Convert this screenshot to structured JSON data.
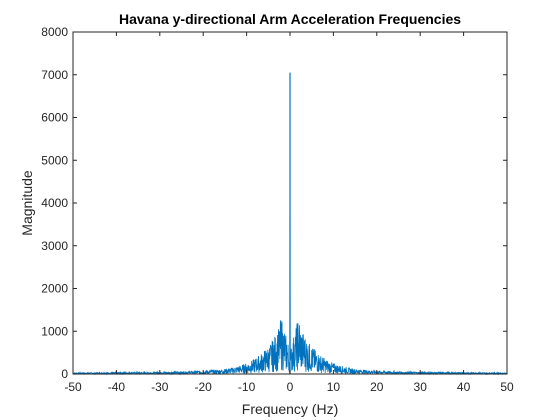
{
  "chart_data": {
    "type": "line",
    "title": "Havana y-directional Arm Acceleration Frequencies",
    "xlabel": "Frequency (Hz)",
    "ylabel": "Magnitude",
    "xlim": [
      -50,
      50
    ],
    "ylim": [
      0,
      8000
    ],
    "xticks": [
      -50,
      -40,
      -30,
      -20,
      -10,
      0,
      10,
      20,
      30,
      40,
      50
    ],
    "yticks": [
      0,
      1000,
      2000,
      3000,
      4000,
      5000,
      6000,
      7000,
      8000
    ],
    "grid": false,
    "legend": "none",
    "series": [
      {
        "color": "#0072bd",
        "peak": {
          "x": 0,
          "y": 7050
        },
        "x": [
          -50,
          -40,
          -30,
          -25,
          -20,
          -17,
          -15,
          -13,
          -11,
          -9,
          -7,
          -6,
          -5,
          -4,
          -3.5,
          -3,
          -2.5,
          -2,
          -1.5,
          -1,
          -0.5,
          -0.2,
          0,
          0.2,
          0.5,
          1,
          1.5,
          2,
          2.5,
          3,
          3.5,
          4,
          5,
          6,
          7,
          9,
          11,
          13,
          15,
          17,
          20,
          25,
          30,
          40,
          50
        ],
        "envelope": [
          30,
          40,
          50,
          60,
          80,
          100,
          120,
          160,
          220,
          300,
          450,
          550,
          650,
          800,
          900,
          1000,
          1100,
          1380,
          1150,
          950,
          800,
          600,
          7050,
          600,
          800,
          950,
          1150,
          1380,
          1100,
          1000,
          900,
          800,
          650,
          550,
          450,
          300,
          220,
          160,
          120,
          100,
          80,
          60,
          50,
          40,
          30
        ]
      }
    ]
  }
}
